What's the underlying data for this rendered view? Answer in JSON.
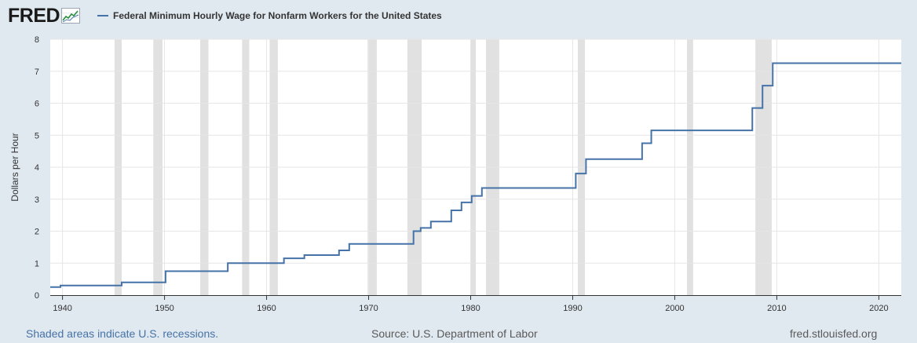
{
  "header": {
    "logo_text": "FRED",
    "logo_icon": "chart-line-icon",
    "series_title": "Federal Minimum Hourly Wage for Nonfarm Workers for the United States"
  },
  "footer": {
    "recession_note": "Shaded areas indicate U.S. recessions.",
    "source": "Source: U.S. Department of Labor",
    "site": "fred.stlouisfed.org"
  },
  "colors": {
    "page_background": "#e1e9f0",
    "plot_background": "#ffffff",
    "series_line": "#4572a7",
    "recession_shade": "#e1e1e1",
    "grid": "#e6e6e6"
  },
  "chart_data": {
    "type": "line",
    "step": true,
    "ylabel": "Dollars per Hour",
    "xlabel": "",
    "xlim": [
      1938.8,
      2022.2
    ],
    "ylim": [
      0,
      8
    ],
    "x_ticks": [
      1940,
      1950,
      1960,
      1970,
      1980,
      1990,
      2000,
      2010,
      2020
    ],
    "y_ticks": [
      0,
      1,
      2,
      3,
      4,
      5,
      6,
      7,
      8
    ],
    "grid": true,
    "series": [
      {
        "name": "Federal Minimum Hourly Wage for Nonfarm Workers for the United States",
        "x": [
          1938.8,
          1939.8,
          1945.8,
          1950.1,
          1956.2,
          1961.7,
          1963.7,
          1967.1,
          1968.1,
          1974.4,
          1975.1,
          1976.1,
          1978.1,
          1979.1,
          1980.1,
          1981.1,
          1990.3,
          1991.3,
          1996.8,
          1997.7,
          2007.6,
          2008.6,
          2009.6,
          2022.2
        ],
        "y": [
          0.25,
          0.3,
          0.4,
          0.75,
          1.0,
          1.15,
          1.25,
          1.4,
          1.6,
          2.0,
          2.1,
          2.3,
          2.65,
          2.9,
          3.1,
          3.35,
          3.8,
          4.25,
          4.75,
          5.15,
          5.85,
          6.55,
          7.25,
          7.25
        ]
      }
    ],
    "recessions": [
      [
        1945.1,
        1945.8
      ],
      [
        1948.9,
        1949.8
      ],
      [
        1953.5,
        1954.3
      ],
      [
        1957.6,
        1958.3
      ],
      [
        1960.3,
        1961.1
      ],
      [
        1969.9,
        1970.8
      ],
      [
        1973.8,
        1975.2
      ],
      [
        1980.0,
        1980.5
      ],
      [
        1981.5,
        1982.8
      ],
      [
        1990.5,
        1991.2
      ],
      [
        2001.2,
        2001.8
      ],
      [
        2007.9,
        2009.5
      ]
    ]
  }
}
